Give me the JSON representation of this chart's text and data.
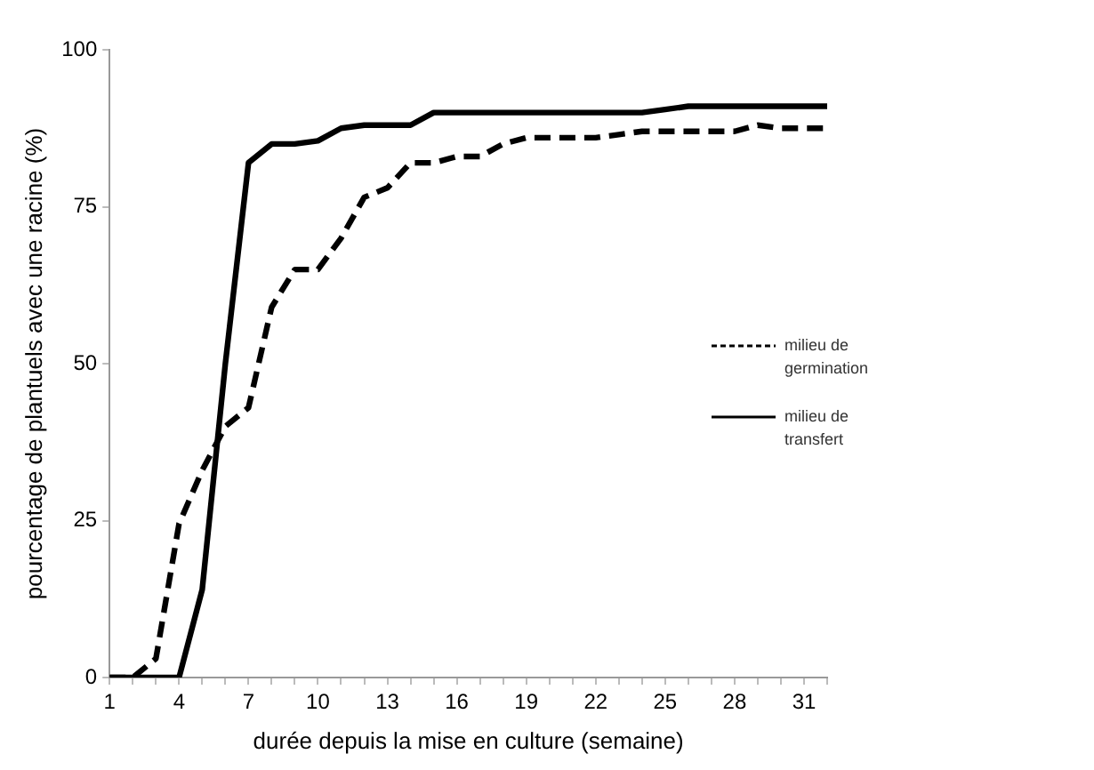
{
  "chart_data": {
    "type": "line",
    "xlabel": "durée depuis la mise en culture (semaine)",
    "ylabel": "pourcentage de plantuels avec une racine (%)",
    "x": [
      1,
      2,
      3,
      4,
      5,
      6,
      7,
      8,
      9,
      10,
      11,
      12,
      13,
      14,
      15,
      16,
      17,
      18,
      19,
      20,
      21,
      22,
      23,
      24,
      25,
      26,
      27,
      28,
      29,
      30,
      31,
      32
    ],
    "series": [
      {
        "name": "milieu de germination",
        "color": "#000000",
        "line_style": "dashed",
        "values": [
          0,
          0,
          3,
          24.5,
          33,
          40,
          43,
          59,
          65,
          65,
          70,
          76.5,
          78,
          82,
          82,
          83,
          83,
          85,
          86,
          86,
          86,
          86,
          86.5,
          87,
          87,
          87,
          87,
          87,
          88,
          87.5,
          87.5,
          87.5
        ]
      },
      {
        "name": "milieu de transfert",
        "color": "#000000",
        "line_style": "solid",
        "values": [
          0,
          0,
          0,
          0,
          14,
          50,
          82,
          85,
          85,
          85.5,
          87.5,
          88,
          88,
          88,
          90,
          90,
          90,
          90,
          90,
          90,
          90,
          90,
          90,
          90,
          90.5,
          91,
          91,
          91,
          91,
          91,
          91,
          91
        ]
      }
    ],
    "xlim": [
      1,
      32
    ],
    "ylim": [
      0,
      100
    ],
    "xticks": [
      1,
      {
        "value": 2,
        "label": null
      },
      {
        "value": 3,
        "label": null
      },
      4,
      {
        "value": 5,
        "label": null
      },
      {
        "value": 6,
        "label": null
      },
      7,
      {
        "value": 8,
        "label": null
      },
      {
        "value": 9,
        "label": null
      },
      10,
      {
        "value": 11,
        "label": null
      },
      {
        "value": 12,
        "label": null
      },
      13,
      {
        "value": 14,
        "label": null
      },
      {
        "value": 15,
        "label": null
      },
      16,
      {
        "value": 17,
        "label": null
      },
      {
        "value": 18,
        "label": null
      },
      19,
      {
        "value": 20,
        "label": null
      },
      {
        "value": 21,
        "label": null
      },
      22,
      {
        "value": 23,
        "label": null
      },
      {
        "value": 24,
        "label": null
      },
      25,
      {
        "value": 26,
        "label": null
      },
      {
        "value": 27,
        "label": null
      },
      28,
      {
        "value": 29,
        "label": null
      },
      {
        "value": 30,
        "label": null
      },
      31,
      {
        "value": 32,
        "label": null
      }
    ],
    "yticks": [
      0,
      25,
      50,
      75,
      100
    ],
    "grid": false,
    "legend": "right",
    "marker": "none"
  }
}
